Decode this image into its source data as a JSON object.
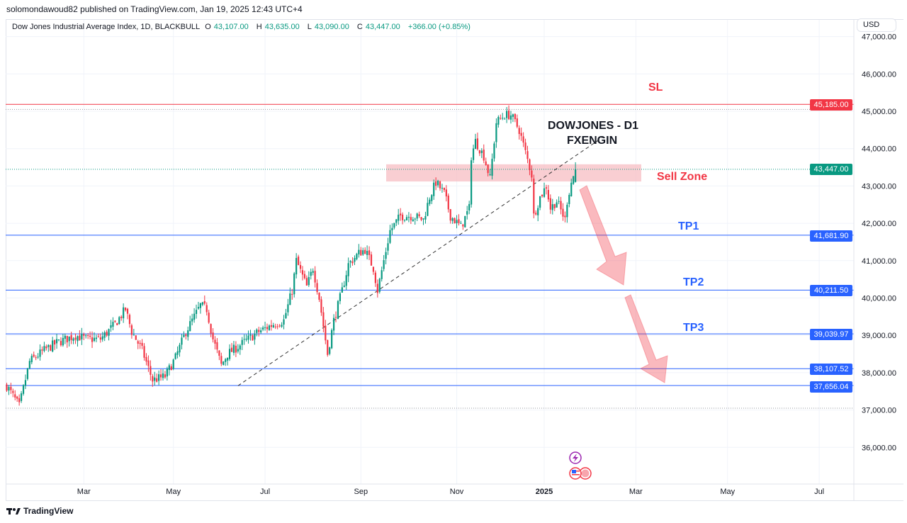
{
  "header": {
    "published": "solomondawoud82 published on TradingView.com, Jan 19, 2025 12:43 UTC+4",
    "symbol": "Dow Jones Industrial Average Index, 1D, BLACKBULL",
    "o_label": "O",
    "o": "43,107.00",
    "h_label": "H",
    "h": "43,635.00",
    "l_label": "L",
    "l": "43,090.00",
    "c_label": "C",
    "c": "43,447.00",
    "change": "+366.00 (+0.85%)"
  },
  "currency": "USD",
  "brand": "TradingView",
  "price_tags": {
    "sl": "45,185.00",
    "current": "43,447.00",
    "tp1": "41,681.90",
    "tp2": "40,211.50",
    "tp3": "39,039.97",
    "l4": "38,107.52",
    "l5": "37,656.04"
  },
  "annotations": {
    "title1": "DOWJONES - D1",
    "title2": "FXENGIN",
    "sl": "SL",
    "sell_zone": "Sell Zone",
    "tp1": "TP1",
    "tp2": "TP2",
    "tp3": "TP3"
  },
  "colors": {
    "up": "#089981",
    "down": "#f23645",
    "sl": "#f23645",
    "tp": "#2962ff",
    "zone": "#f7b9bf"
  },
  "chart_data": {
    "type": "candlestick",
    "title": "Dow Jones Industrial Average Index, 1D",
    "y_ticks": [
      "47,000.00",
      "46,000.00",
      "45,000.00",
      "44,000.00",
      "43,000.00",
      "42,000.00",
      "41,000.00",
      "40,000.00",
      "39,000.00",
      "38,000.00",
      "37,000.00",
      "36,000.00"
    ],
    "y_tick_values": [
      47000,
      46000,
      45000,
      44000,
      43000,
      42000,
      41000,
      40000,
      39000,
      38000,
      37000,
      36000
    ],
    "x_ticks": [
      "Mar",
      "May",
      "Jul",
      "Sep",
      "Nov",
      "2025",
      "Mar",
      "May",
      "Jul"
    ],
    "x_tick_day_index": [
      37,
      80,
      124,
      170,
      216,
      258,
      302,
      346,
      390
    ],
    "ylim": [
      35200,
      47100
    ],
    "close_anchors_by_trading_day": [
      [
        0,
        37650
      ],
      [
        6,
        37100
      ],
      [
        11,
        38300
      ],
      [
        18,
        38600
      ],
      [
        24,
        38800
      ],
      [
        33,
        39000
      ],
      [
        38,
        38900
      ],
      [
        45,
        38900
      ],
      [
        52,
        39300
      ],
      [
        57,
        39700
      ],
      [
        60,
        39100
      ],
      [
        65,
        38600
      ],
      [
        70,
        37800
      ],
      [
        76,
        37900
      ],
      [
        81,
        38400
      ],
      [
        86,
        39100
      ],
      [
        93,
        39800
      ],
      [
        96,
        39700
      ],
      [
        99,
        38900
      ],
      [
        103,
        38200
      ],
      [
        106,
        38500
      ],
      [
        111,
        38700
      ],
      [
        116,
        38900
      ],
      [
        121,
        39100
      ],
      [
        128,
        39300
      ],
      [
        133,
        39400
      ],
      [
        137,
        40200
      ],
      [
        139,
        41000
      ],
      [
        144,
        40300
      ],
      [
        147,
        40800
      ],
      [
        150,
        40000
      ],
      [
        154,
        38500
      ],
      [
        157,
        39400
      ],
      [
        161,
        40200
      ],
      [
        164,
        40900
      ],
      [
        169,
        41200
      ],
      [
        172,
        41300
      ],
      [
        176,
        40800
      ],
      [
        178,
        40200
      ],
      [
        181,
        41000
      ],
      [
        184,
        41800
      ],
      [
        189,
        42200
      ],
      [
        195,
        42200
      ],
      [
        200,
        42100
      ],
      [
        203,
        42700
      ],
      [
        206,
        43100
      ],
      [
        210,
        42800
      ],
      [
        213,
        42200
      ],
      [
        218,
        41900
      ],
      [
        222,
        42400
      ],
      [
        223,
        43800
      ],
      [
        225,
        44200
      ],
      [
        229,
        43800
      ],
      [
        232,
        43200
      ],
      [
        235,
        44700
      ],
      [
        239,
        44900
      ],
      [
        242,
        44900
      ],
      [
        246,
        44500
      ],
      [
        249,
        43900
      ],
      [
        252,
        43300
      ],
      [
        253,
        42200
      ],
      [
        256,
        42700
      ],
      [
        259,
        43000
      ],
      [
        261,
        42400
      ],
      [
        264,
        42600
      ],
      [
        268,
        42100
      ],
      [
        269,
        42600
      ],
      [
        271,
        43100
      ],
      [
        273,
        43447
      ]
    ],
    "last_candle": {
      "open": 43107,
      "high": 43635,
      "low": 43090,
      "close": 43447
    },
    "levels": {
      "sl": 45185,
      "tp1": 41681.9,
      "tp2": 40211.5,
      "tp3": 39039.97,
      "l4": 38107.52,
      "l5": 37656.04,
      "current": 43447,
      "high_dotted": 45050,
      "low_dotted": 37050
    },
    "sell_zone": [
      43120,
      43580
    ],
    "trendline": [
      [
        111,
        37650
      ],
      [
        286,
        44300
      ]
    ]
  }
}
